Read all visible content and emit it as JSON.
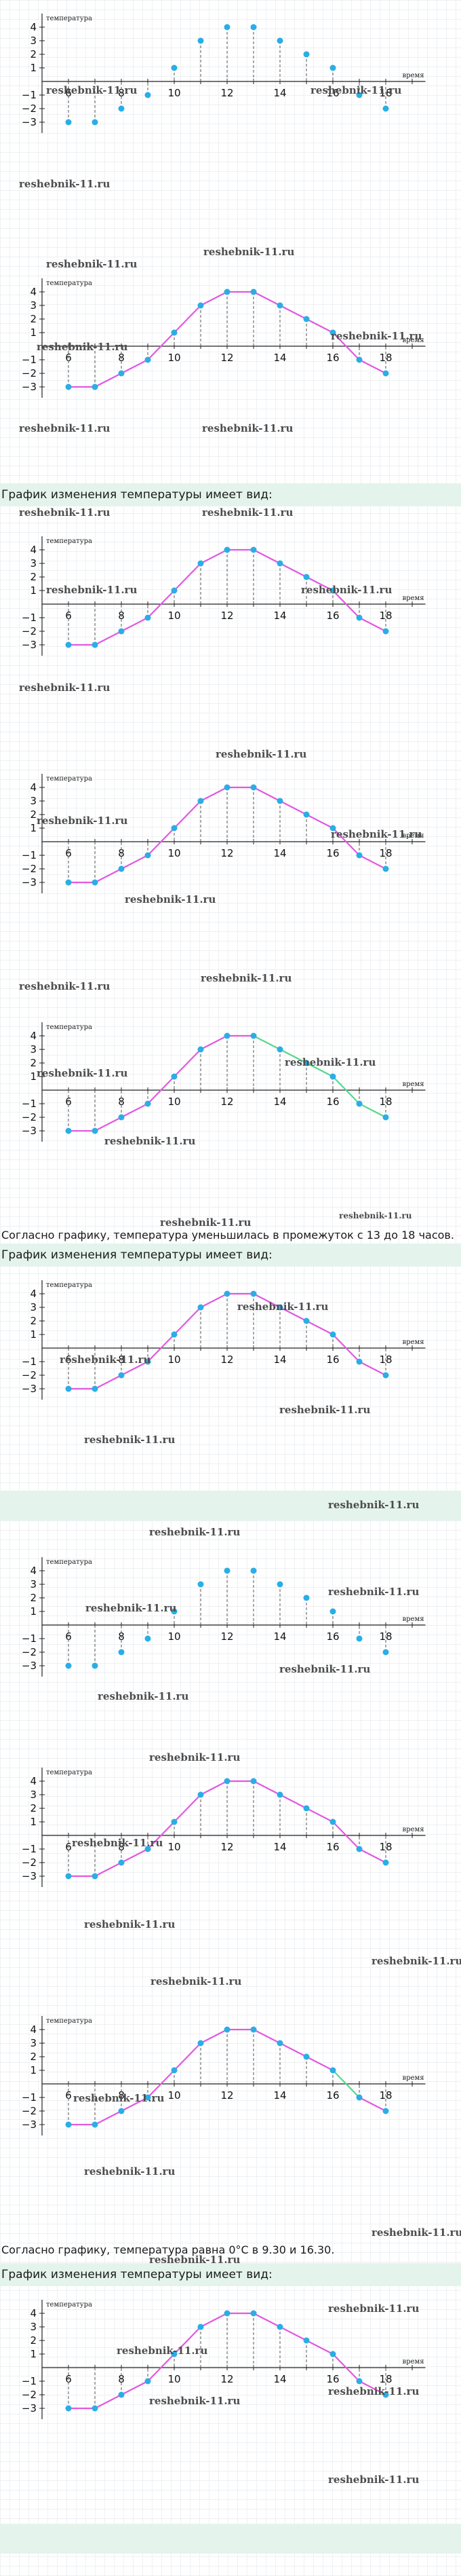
{
  "axes": {
    "ylabel": "температура",
    "xlabel": "время",
    "x_ticks": [
      "6",
      "8",
      "10",
      "12",
      "14",
      "16",
      "18"
    ],
    "y_ticks": [
      "4",
      "3",
      "2",
      "1",
      "−1",
      "−2",
      "−3"
    ]
  },
  "watermark": "reshebnik-11.ru",
  "texts": {
    "band_title": "График изменения температуры имеет вид:",
    "caption_decrease": "Согласно графику, температура уменьшилась в промежуток с 13 до 18 часов.",
    "caption_zero": "Согласно графику, температура равна 0°C в 9.30 и 16.30."
  },
  "chart_data": [
    {
      "type": "scatter",
      "x": [
        6,
        7,
        8,
        9,
        10,
        11,
        12,
        13,
        14,
        15,
        16,
        17,
        18
      ],
      "y": [
        -3,
        -3,
        -2,
        -1,
        1,
        3,
        4,
        4,
        3,
        2,
        1,
        -1,
        -2
      ],
      "xlabel": "время",
      "ylabel": "температура",
      "xlim": [
        5,
        19.5
      ],
      "ylim": [
        -3.8,
        5
      ],
      "grid": false
    },
    {
      "type": "line",
      "x": [
        6,
        7,
        8,
        9,
        10,
        11,
        12,
        13,
        14,
        15,
        16,
        17,
        18
      ],
      "y": [
        -3,
        -3,
        -2,
        -1,
        1,
        3,
        4,
        4,
        3,
        2,
        1,
        -1,
        -2
      ],
      "xlabel": "время",
      "ylabel": "температура",
      "xlim": [
        5,
        19.5
      ],
      "ylim": [
        -3.8,
        5
      ],
      "grid": false
    },
    {
      "type": "line",
      "x": [
        6,
        7,
        8,
        9,
        10,
        11,
        12,
        13,
        14,
        15,
        16,
        17,
        18
      ],
      "y": [
        -3,
        -3,
        -2,
        -1,
        1,
        3,
        4,
        4,
        3,
        2,
        1,
        -1,
        -2
      ],
      "xlabel": "время",
      "ylabel": "температура",
      "xlim": [
        5,
        19.5
      ],
      "ylim": [
        -3.8,
        5
      ],
      "grid": false
    },
    {
      "type": "line",
      "x": [
        6,
        7,
        8,
        9,
        10,
        11,
        12,
        13,
        14,
        15,
        16,
        17,
        18
      ],
      "y": [
        -3,
        -3,
        -2,
        -1,
        1,
        3,
        4,
        4,
        3,
        2,
        1,
        -1,
        -2
      ],
      "xlabel": "время",
      "ylabel": "температура",
      "xlim": [
        5,
        19.5
      ],
      "ylim": [
        -3.8,
        5
      ],
      "grid": false
    },
    {
      "type": "line",
      "x": [
        6,
        7,
        8,
        9,
        10,
        11,
        12,
        13,
        14,
        15,
        16,
        17,
        18
      ],
      "y": [
        -3,
        -3,
        -2,
        -1,
        1,
        3,
        4,
        4,
        3,
        2,
        1,
        -1,
        -2
      ],
      "xlabel": "время",
      "ylabel": "температура",
      "xlim": [
        5,
        19.5
      ],
      "ylim": [
        -3.8,
        5
      ],
      "grid": false,
      "highlight": {
        "x_from": 13,
        "x_to": 18,
        "color": "#5ad68e"
      }
    },
    {
      "type": "line",
      "x": [
        6,
        7,
        8,
        9,
        10,
        11,
        12,
        13,
        14,
        15,
        16,
        17,
        18
      ],
      "y": [
        -3,
        -3,
        -2,
        -1,
        1,
        3,
        4,
        4,
        3,
        2,
        1,
        -1,
        -2
      ],
      "xlabel": "время",
      "ylabel": "температура",
      "xlim": [
        5,
        19.5
      ],
      "ylim": [
        -3.8,
        5
      ],
      "grid": false
    },
    {
      "type": "scatter",
      "x": [
        6,
        7,
        8,
        9,
        10,
        11,
        12,
        13,
        14,
        15,
        16,
        17,
        18
      ],
      "y": [
        -3,
        -3,
        -2,
        -1,
        1,
        3,
        4,
        4,
        3,
        2,
        1,
        -1,
        -2
      ],
      "xlabel": "время",
      "ylabel": "температура",
      "xlim": [
        5,
        19.5
      ],
      "ylim": [
        -3.8,
        5
      ],
      "grid": false
    },
    {
      "type": "line",
      "x": [
        6,
        7,
        8,
        9,
        10,
        11,
        12,
        13,
        14,
        15,
        16,
        17,
        18
      ],
      "y": [
        -3,
        -3,
        -2,
        -1,
        1,
        3,
        4,
        4,
        3,
        2,
        1,
        -1,
        -2
      ],
      "xlabel": "время",
      "ylabel": "температура",
      "xlim": [
        5,
        19.5
      ],
      "ylim": [
        -3.8,
        5
      ],
      "grid": false
    },
    {
      "type": "line",
      "x": [
        6,
        7,
        8,
        9,
        10,
        11,
        12,
        13,
        14,
        15,
        16,
        17,
        18
      ],
      "y": [
        -3,
        -3,
        -2,
        -1,
        1,
        3,
        4,
        4,
        3,
        2,
        1,
        -1,
        -2
      ],
      "xlabel": "время",
      "ylabel": "температура",
      "xlim": [
        5,
        19.5
      ],
      "ylim": [
        -3.8,
        5
      ],
      "grid": false,
      "highlight": {
        "x_from": 16,
        "x_to": 17,
        "color": "#5ad68e"
      }
    },
    {
      "type": "line",
      "x": [
        6,
        7,
        8,
        9,
        10,
        11,
        12,
        13,
        14,
        15,
        16,
        17,
        18
      ],
      "y": [
        -3,
        -3,
        -2,
        -1,
        1,
        3,
        4,
        4,
        3,
        2,
        1,
        -1,
        -2
      ],
      "xlabel": "время",
      "ylabel": "температура",
      "xlim": [
        5,
        19.5
      ],
      "ylim": [
        -3.8,
        5
      ],
      "grid": false
    }
  ]
}
